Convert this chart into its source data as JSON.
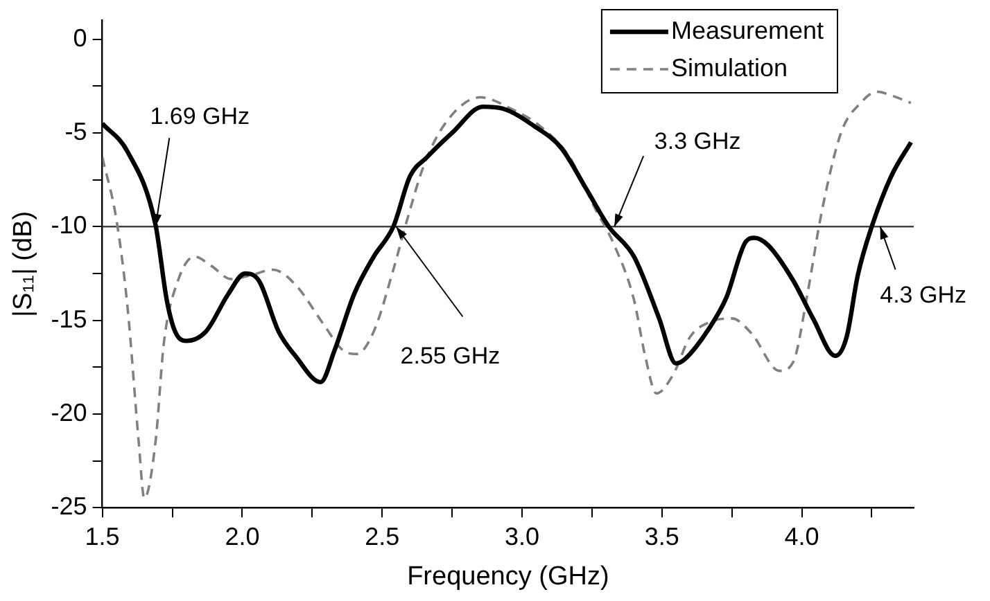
{
  "chart_data": {
    "type": "line",
    "xlabel": "Frequency (GHz)",
    "ylabel": "|S₁₁| (dB)",
    "xlim": [
      1.5,
      4.4
    ],
    "ylim": [
      -25,
      1
    ],
    "xticks": [
      1.5,
      {
        "value": 1.75,
        "label": null
      },
      {
        "value": 2,
        "label": "2.0"
      },
      {
        "value": 2.25,
        "label": null
      },
      2.5,
      {
        "value": 2.75,
        "label": null
      },
      {
        "value": 3,
        "label": "3.0"
      },
      {
        "value": 3.25,
        "label": null
      },
      3.5,
      {
        "value": 3.75,
        "label": null
      },
      {
        "value": 4,
        "label": "4.0"
      },
      {
        "value": 4.25,
        "label": null
      }
    ],
    "yticks": [
      -25,
      {
        "value": -22.5,
        "label": null
      },
      -20,
      {
        "value": -17.5,
        "label": null
      },
      -15,
      {
        "value": -12.5,
        "label": null
      },
      -10,
      {
        "value": -7.5,
        "label": null
      },
      -5,
      {
        "value": -2.5,
        "label": null
      },
      0
    ],
    "grid": false,
    "legend": "top right",
    "marker": "none",
    "series": [
      {
        "name": "Measurement",
        "color": "#000000",
        "line_style": "solid",
        "x": [
          1.5,
          1.59,
          1.69,
          1.73,
          1.76,
          1.8,
          1.87,
          1.95,
          2.01,
          2.06,
          2.13,
          2.19,
          2.28,
          2.33,
          2.4,
          2.47,
          2.54,
          2.6,
          2.66,
          2.75,
          2.86,
          2.93,
          3.05,
          3.14,
          3.23,
          3.31,
          3.4,
          3.49,
          3.55,
          3.58,
          3.67,
          3.73,
          3.8,
          3.83,
          3.88,
          3.97,
          4.04,
          4.12,
          4.16,
          4.2,
          4.25,
          4.32,
          4.39
        ],
        "values": [
          -4.5,
          -6.0,
          -9.9,
          -13.9,
          -15.6,
          -16.1,
          -15.6,
          -13.6,
          -12.5,
          -12.9,
          -15.6,
          -16.9,
          -18.3,
          -16.6,
          -13.6,
          -11.6,
          -10.0,
          -7.3,
          -6.3,
          -5.0,
          -3.6,
          -3.7,
          -4.7,
          -5.8,
          -8.0,
          -10.0,
          -11.6,
          -14.9,
          -17.3,
          -17.1,
          -15.4,
          -13.8,
          -10.8,
          -10.6,
          -11.0,
          -12.9,
          -14.9,
          -16.9,
          -15.9,
          -12.6,
          -10.0,
          -7.3,
          -5.5
        ]
      },
      {
        "name": "Simulation",
        "color": "#808080",
        "line_style": "dashed",
        "x": [
          1.5,
          1.55,
          1.59,
          1.63,
          1.65,
          1.69,
          1.72,
          1.77,
          1.83,
          1.89,
          1.96,
          2.03,
          2.11,
          2.19,
          2.29,
          2.36,
          2.41,
          2.47,
          2.54,
          2.59,
          2.65,
          2.73,
          2.85,
          2.96,
          3.07,
          3.17,
          3.26,
          3.33,
          3.4,
          3.44,
          3.48,
          3.54,
          3.6,
          3.67,
          3.75,
          3.82,
          3.92,
          3.97,
          4.02,
          4.07,
          4.14,
          4.21,
          4.27,
          4.32,
          4.39
        ],
        "values": [
          -6.3,
          -9.6,
          -14.3,
          -21.5,
          -24.5,
          -21.5,
          -16.2,
          -12.9,
          -11.6,
          -12.1,
          -12.8,
          -12.6,
          -12.3,
          -13.1,
          -15.2,
          -16.6,
          -16.8,
          -15.6,
          -12.3,
          -9.6,
          -6.7,
          -4.4,
          -3.1,
          -3.7,
          -4.7,
          -6.3,
          -9.0,
          -11.0,
          -13.9,
          -16.9,
          -18.9,
          -17.9,
          -15.9,
          -15.1,
          -14.9,
          -15.7,
          -17.7,
          -17.2,
          -13.6,
          -9.3,
          -5.0,
          -3.4,
          -2.8,
          -3.0,
          -3.4
        ]
      }
    ],
    "ref_lines": [
      {
        "axis": "y",
        "value": -10,
        "color": "#404040"
      }
    ],
    "annotations": [
      {
        "text": "1.69 GHz",
        "x": 1.69,
        "y": -10
      },
      {
        "text": "2.55 GHz",
        "x": 2.55,
        "y": -10
      },
      {
        "text": "3.3 GHz",
        "x": 3.33,
        "y": -10
      },
      {
        "text": "4.3 GHz",
        "x": 4.28,
        "y": -10
      }
    ]
  }
}
